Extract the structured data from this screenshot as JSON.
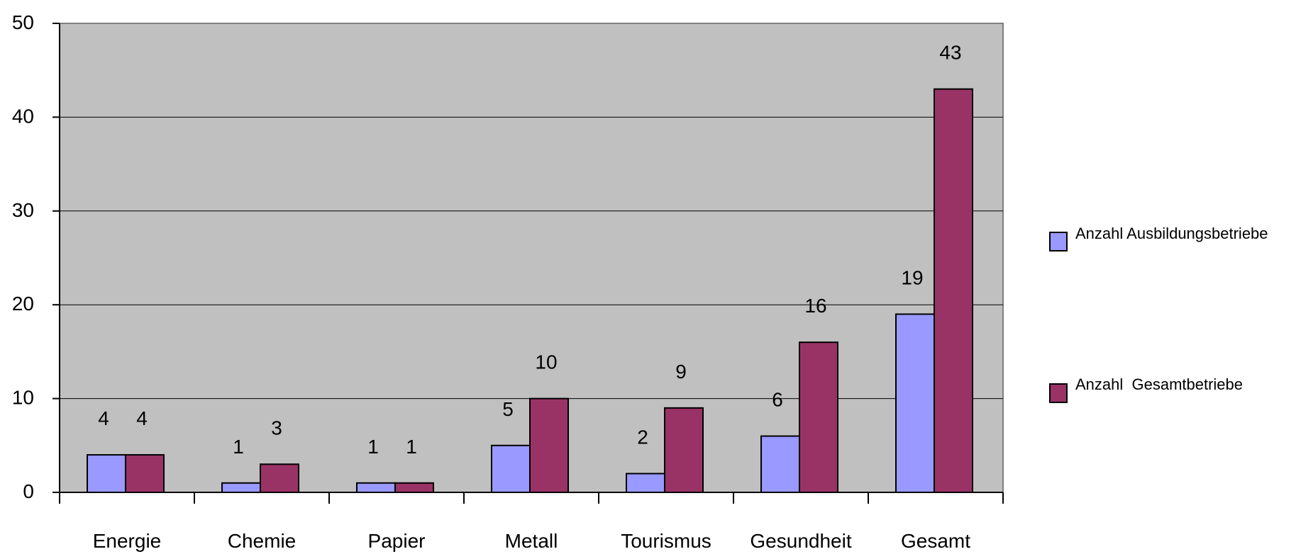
{
  "chart_data": {
    "type": "bar",
    "categories": [
      "Energie",
      "Chemie",
      "Papier",
      "Metall",
      "Tourismus",
      "Gesundheit",
      "Gesamt"
    ],
    "series": [
      {
        "name": "Anzahl Ausbildungsbetriebe",
        "values": [
          4,
          1,
          1,
          5,
          2,
          6,
          19
        ],
        "color": "#9999ff"
      },
      {
        "name": "Anzahl  Gesamtbetriebe",
        "values": [
          4,
          3,
          1,
          10,
          9,
          16,
          43
        ],
        "color": "#993366"
      }
    ],
    "title": "",
    "xlabel": "",
    "ylabel": "",
    "ylim": [
      0,
      50
    ],
    "yticks": [
      0,
      10,
      20,
      30,
      40,
      50
    ],
    "grid": true,
    "plot_background": "#c0c0c0",
    "legend_position": "right"
  }
}
